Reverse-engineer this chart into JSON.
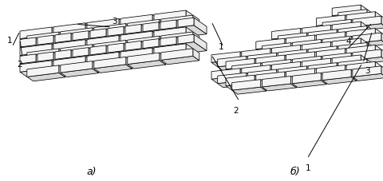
{
  "fig_width": 4.81,
  "fig_height": 2.28,
  "dpi": 100,
  "bg_color": "#ffffff",
  "label_a": "a)",
  "label_b": "б)",
  "line_color": "#000000",
  "FC": "#f5f5f5",
  "TC": "#d8d8d8",
  "SC": "#e8e8e8",
  "lw": 0.55,
  "ann_fs": 7.5
}
